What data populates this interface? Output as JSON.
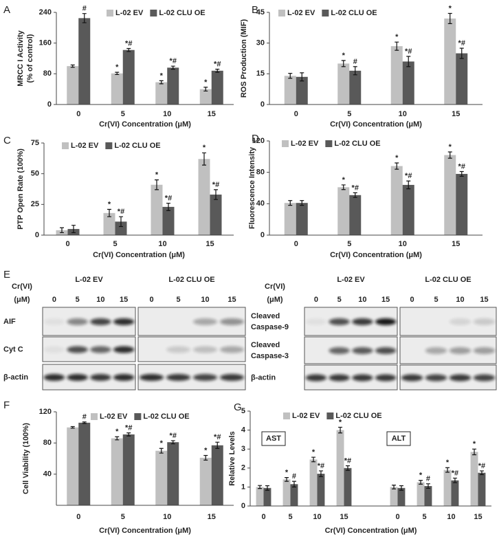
{
  "chart_data": [
    {
      "type": "bar",
      "panel_label": "A",
      "ylabel": [
        "MRCC I Activity",
        "(% of control)"
      ],
      "xlabel": "Cr(VI) Concentration (μM)",
      "categories": [
        "0",
        "5",
        "10",
        "15"
      ],
      "ylim": [
        0,
        240
      ],
      "yticks": [
        0,
        80,
        160,
        240
      ],
      "series": [
        {
          "name": "L-02 EV",
          "color": "#c0c0c0",
          "values": [
            100,
            81,
            58,
            40
          ],
          "errors": [
            3,
            3,
            4,
            5
          ],
          "annotations": [
            null,
            "*",
            "*",
            "*"
          ]
        },
        {
          "name": "L-02 CLU OE",
          "color": "#595959",
          "values": [
            225,
            142,
            96,
            88
          ],
          "errors": [
            12,
            4,
            4,
            4
          ],
          "annotations": [
            "#",
            "*#",
            "*#",
            "*#"
          ]
        }
      ]
    },
    {
      "type": "bar",
      "panel_label": "B",
      "ylabel": [
        "ROS Production (MIF)"
      ],
      "xlabel": "Cr(VI) Concentration (μM)",
      "categories": [
        "0",
        "5",
        "10",
        "15"
      ],
      "ylim": [
        0,
        45
      ],
      "yticks": [
        0,
        15,
        30,
        45
      ],
      "series": [
        {
          "name": "L-02 EV",
          "color": "#c0c0c0",
          "values": [
            14,
            20,
            28.5,
            42
          ],
          "errors": [
            1.2,
            1.5,
            2,
            2.5
          ],
          "annotations": [
            null,
            "*",
            "*",
            "*"
          ]
        },
        {
          "name": "L-02 CLU OE",
          "color": "#595959",
          "values": [
            13.5,
            16.5,
            21,
            25
          ],
          "errors": [
            2,
            2,
            2.5,
            2.5
          ],
          "annotations": [
            null,
            "#",
            "*#",
            "*#"
          ]
        }
      ]
    },
    {
      "type": "bar",
      "panel_label": "C",
      "ylabel": [
        "PTP Open Rate (100%)"
      ],
      "xlabel": "Cr(VI) Concentration (μM)",
      "categories": [
        "0",
        "5",
        "10",
        "15"
      ],
      "ylim": [
        0,
        75
      ],
      "yticks": [
        0,
        25,
        50,
        75
      ],
      "series": [
        {
          "name": "L-02 EV",
          "color": "#c0c0c0",
          "values": [
            4,
            18,
            41,
            62
          ],
          "errors": [
            2,
            3,
            4,
            5
          ],
          "annotations": [
            null,
            "*",
            "*",
            "*"
          ]
        },
        {
          "name": "L-02 CLU OE",
          "color": "#595959",
          "values": [
            5,
            11,
            23,
            33
          ],
          "errors": [
            3,
            4,
            3,
            4
          ],
          "annotations": [
            null,
            "*#",
            "*#",
            "*#"
          ]
        }
      ]
    },
    {
      "type": "bar",
      "panel_label": "D",
      "ylabel": [
        "Fluorescence Intensity"
      ],
      "xlabel": "Cr(VI) Concentration (μM)",
      "categories": [
        "0",
        "5",
        "10",
        "15"
      ],
      "ylim": [
        0,
        120
      ],
      "yticks": [
        0,
        40,
        80,
        120
      ],
      "series": [
        {
          "name": "L-02 EV",
          "color": "#c0c0c0",
          "values": [
            41,
            61,
            88,
            102
          ],
          "errors": [
            3,
            3,
            4,
            4
          ],
          "annotations": [
            null,
            "*",
            "*",
            "*"
          ]
        },
        {
          "name": "L-02 CLU OE",
          "color": "#595959",
          "values": [
            41,
            51,
            64,
            78
          ],
          "errors": [
            3,
            3,
            5,
            3
          ],
          "annotations": [
            null,
            "*#",
            "*#",
            "*#"
          ]
        }
      ]
    },
    {
      "type": "bar",
      "panel_label": "F",
      "ylabel": [
        "Cell Viability (100%)"
      ],
      "xlabel": "Cr(VI) Concentration (μM)",
      "categories": [
        "0",
        "5",
        "10",
        "15"
      ],
      "ylim": [
        0,
        120
      ],
      "yticks": [
        40,
        80,
        120
      ],
      "series": [
        {
          "name": "L-02 EV",
          "color": "#c0c0c0",
          "values": [
            100,
            86,
            70,
            61
          ],
          "errors": [
            1,
            2,
            3,
            3
          ],
          "annotations": [
            null,
            "*",
            "*",
            "*"
          ]
        },
        {
          "name": "L-02 CLU OE",
          "color": "#595959",
          "values": [
            106,
            91,
            81,
            77
          ],
          "errors": [
            1,
            2,
            2,
            4
          ],
          "annotations": [
            "#",
            "*#",
            "*#",
            "*#"
          ]
        }
      ]
    },
    {
      "type": "bar",
      "panel_label": "G",
      "ylabel": [
        "Relative Levels"
      ],
      "xlabel": "Cr(VI) Concentration (μM)",
      "categories": [
        "0",
        "5",
        "10",
        "15",
        null,
        "0",
        "5",
        "10",
        "15"
      ],
      "ylim": [
        0,
        5
      ],
      "yticks": [
        0,
        1,
        2,
        3,
        4,
        5
      ],
      "group_labels": [
        "AST",
        "ALT"
      ],
      "series": [
        {
          "name": "L-02 EV",
          "color": "#c0c0c0",
          "values": [
            1.0,
            1.4,
            2.45,
            4.0,
            null,
            1.0,
            1.25,
            1.9,
            2.85
          ],
          "errors": [
            0.08,
            0.1,
            0.12,
            0.15,
            null,
            0.1,
            0.1,
            0.12,
            0.15
          ],
          "annotations": [
            null,
            "*",
            "*",
            "*",
            null,
            null,
            "*",
            "*",
            "*"
          ]
        },
        {
          "name": "L-02 CLU OE",
          "color": "#595959",
          "values": [
            0.95,
            1.15,
            1.7,
            2.0,
            null,
            0.95,
            1.05,
            1.35,
            1.75
          ],
          "errors": [
            0.12,
            0.15,
            0.15,
            0.12,
            null,
            0.12,
            0.12,
            0.12,
            0.1
          ],
          "annotations": [
            null,
            "#",
            "*#",
            "*#",
            null,
            null,
            "#",
            "*#",
            "*#"
          ]
        }
      ]
    }
  ],
  "blots": {
    "panel_label": "E",
    "groups": [
      {
        "header": [
          "Cr(VI)",
          "(μM)"
        ],
        "cell_lines": [
          "L-02 EV",
          "L-02 CLU OE"
        ],
        "doses": [
          "0",
          "5",
          "10",
          "15"
        ],
        "rows": [
          [
            "AIF"
          ],
          [
            "Cyt C"
          ],
          [
            "β-actin"
          ]
        ]
      },
      {
        "header": [
          "Cr(VI)",
          "(μM)"
        ],
        "cell_lines": [
          "L-02 EV",
          "L-02 CLU OE"
        ],
        "doses": [
          "0",
          "5",
          "10",
          "15"
        ],
        "rows": [
          [
            "Cleaved",
            "Caspase-9"
          ],
          [
            "Cleaved",
            "Caspase-3"
          ],
          [
            "β-actin"
          ]
        ]
      }
    ]
  }
}
